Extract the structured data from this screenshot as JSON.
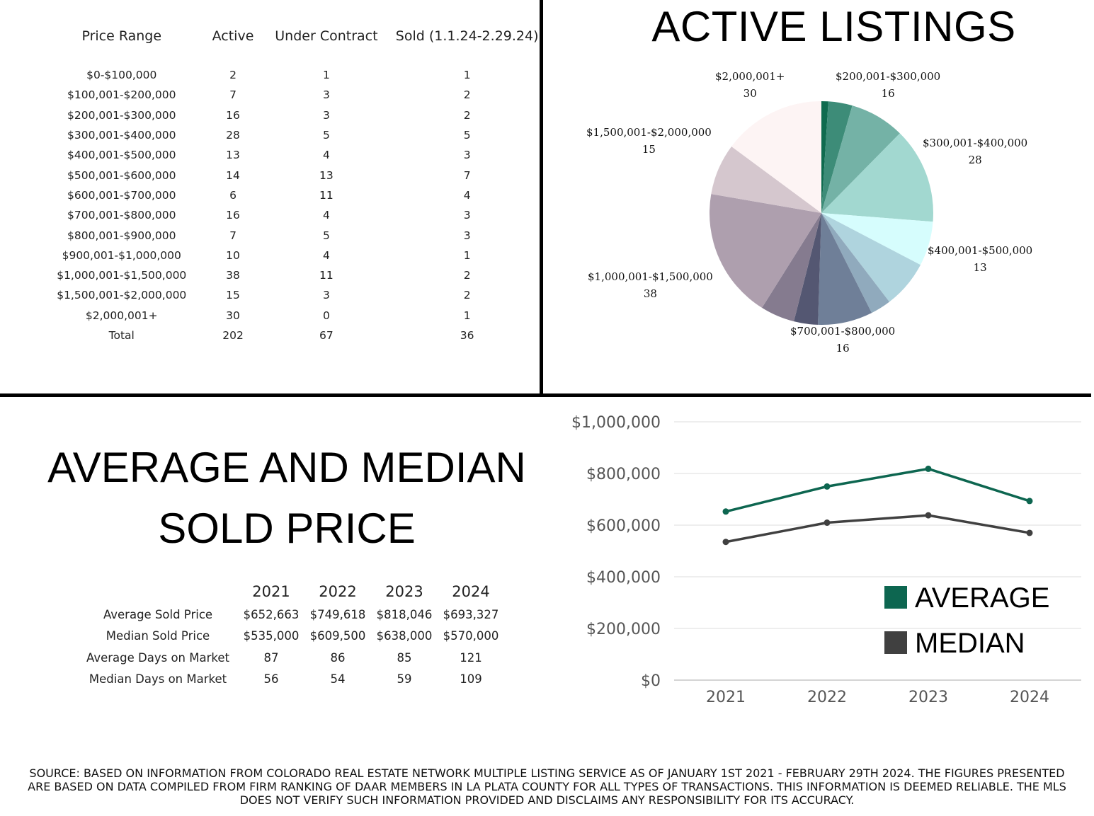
{
  "price_table": {
    "headers": [
      "Price Range",
      "Active",
      "Under Contract",
      "Sold (1.1.24-2.29.24)"
    ],
    "rows": [
      [
        "$0-$100,000",
        "2",
        "1",
        "1"
      ],
      [
        "$100,001-$200,000",
        "7",
        "3",
        "2"
      ],
      [
        "$200,001-$300,000",
        "16",
        "3",
        "2"
      ],
      [
        "$300,001-$400,000",
        "28",
        "5",
        "5"
      ],
      [
        "$400,001-$500,000",
        "13",
        "4",
        "3"
      ],
      [
        "$500,001-$600,000",
        "14",
        "13",
        "7"
      ],
      [
        "$600,001-$700,000",
        "6",
        "11",
        "4"
      ],
      [
        "$700,001-$800,000",
        "16",
        "4",
        "3"
      ],
      [
        "$800,001-$900,000",
        "7",
        "5",
        "3"
      ],
      [
        "$900,001-$1,000,000",
        "10",
        "4",
        "1"
      ],
      [
        "$1,000,001-$1,500,000",
        "38",
        "11",
        "2"
      ],
      [
        "$1,500,001-$2,000,000",
        "15",
        "3",
        "2"
      ],
      [
        "$2,000,001+",
        "30",
        "0",
        "1"
      ],
      [
        "Total",
        "202",
        "67",
        "36"
      ]
    ]
  },
  "pie_labels": [
    {
      "name": "$2,000,001+",
      "value": "30"
    },
    {
      "name": "$200,001-$300,000",
      "value": "16"
    },
    {
      "name": "$1,500,001-$2,000,000",
      "value": "15"
    },
    {
      "name": "$300,001-$400,000",
      "value": "28"
    },
    {
      "name": "$400,001-$500,000",
      "value": "13"
    },
    {
      "name": "$1,000,001-$1,500,000",
      "value": "38"
    },
    {
      "name": "$700,001-$800,000",
      "value": "16"
    }
  ],
  "section_title": {
    "line1": "AVERAGE AND MEDIAN",
    "line2": "SOLD PRICE"
  },
  "stats_table": {
    "years": [
      "2021",
      "2022",
      "2023",
      "2024"
    ],
    "rows": [
      {
        "label": "Average Sold Price",
        "values": [
          "$652,663",
          "$749,618",
          "$818,046",
          "$693,327"
        ]
      },
      {
        "label": "Median Sold Price",
        "values": [
          "$535,000",
          "$609,500",
          "$638,000",
          "$570,000"
        ]
      },
      {
        "label": "Average Days on Market",
        "values": [
          "87",
          "86",
          "85",
          "121"
        ]
      },
      {
        "label": "Median Days on Market",
        "values": [
          "56",
          "54",
          "59",
          "109"
        ]
      }
    ]
  },
  "chart_data": [
    {
      "type": "pie",
      "title": "ACTIVE LISTINGS",
      "categories": [
        "$0-$100,000",
        "$100,001-$200,000",
        "$200,001-$300,000",
        "$300,001-$400,000",
        "$400,001-$500,000",
        "$500,001-$600,000",
        "$600,001-$700,000",
        "$700,001-$800,000",
        "$800,001-$900,000",
        "$900,001-$1,000,000",
        "$1,000,001-$1,500,000",
        "$1,500,001-$2,000,000",
        "$2,000,001+"
      ],
      "values": [
        2,
        7,
        16,
        28,
        13,
        14,
        6,
        16,
        7,
        10,
        38,
        15,
        30
      ],
      "colors": [
        "#0f6b4f",
        "#3d8c78",
        "#74b2a6",
        "#a2d8d0",
        "#d6fdfd",
        "#afd4de",
        "#90aabd",
        "#6f7f98",
        "#545772",
        "#857b8f",
        "#ae9fae",
        "#d5c7ce",
        "#fdf4f4"
      ]
    },
    {
      "type": "line",
      "title": "",
      "categories": [
        "2021",
        "2022",
        "2023",
        "2024"
      ],
      "series": [
        {
          "name": "AVERAGE",
          "values": [
            652663,
            749618,
            818046,
            693327
          ],
          "color": "#0d6650"
        },
        {
          "name": "MEDIAN",
          "values": [
            535000,
            609500,
            638000,
            570000
          ],
          "color": "#404040"
        }
      ],
      "ylim": [
        0,
        1000000
      ],
      "yticks": [
        0,
        200000,
        400000,
        600000,
        800000,
        1000000
      ],
      "ytick_labels": [
        "$0",
        "$200,000",
        "$400,000",
        "$600,000",
        "$800,000",
        "$1,000,000"
      ],
      "grid": true,
      "legend": "bottom-right"
    }
  ],
  "source_text": "SOURCE: BASED ON INFORMATION FROM COLORADO REAL ESTATE NETWORK MULTIPLE LISTING SERVICE AS OF JANUARY 1ST 2021 - FEBRUARY 29TH 2024. THE FIGURES PRESENTED ARE BASED ON DATA COMPILED FROM FIRM RANKING OF DAAR MEMBERS IN LA PLATA COUNTY FOR ALL TYPES OF TRANSACTIONS. THIS INFORMATION IS DEEMED RELIABLE. THE MLS DOES NOT VERIFY SUCH INFORMATION PROVIDED AND DISCLAIMS ANY RESPONSIBILITY FOR ITS ACCURACY."
}
